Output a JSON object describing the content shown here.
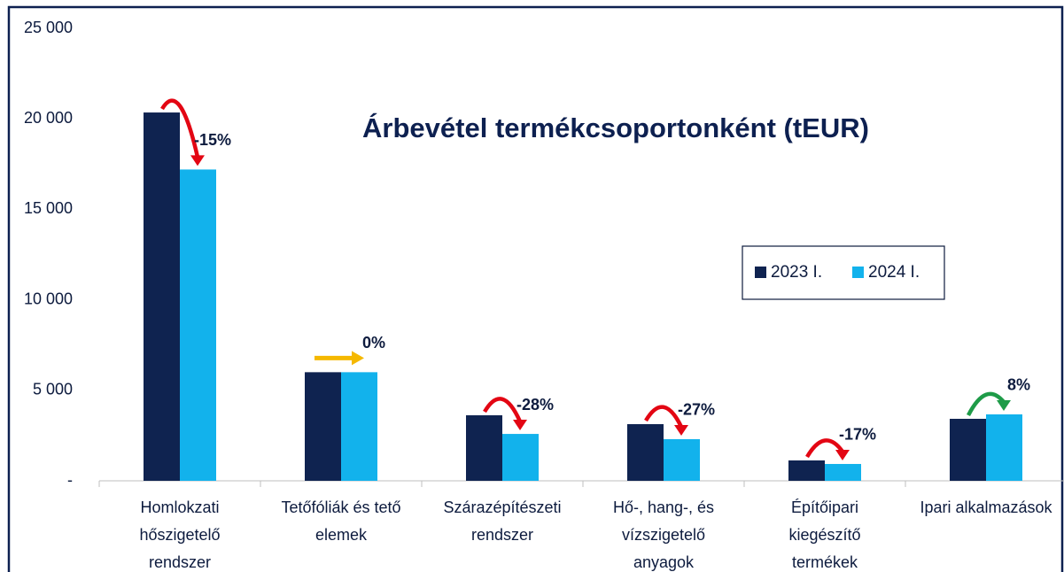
{
  "chart_data": {
    "type": "bar",
    "title": "Árbevétel termékcsoportonként (tEUR)",
    "categories": [
      [
        "Homlokzati",
        "hőszigetelő",
        "rendszer"
      ],
      [
        "Tetőfóliák és tető",
        "elemek"
      ],
      [
        "Szárazépítészeti",
        "rendszer"
      ],
      [
        "Hő-, hang-, és",
        "vízszigetelő",
        "anyagok"
      ],
      [
        "Építőipari",
        "kiegészítő",
        "termékek"
      ],
      [
        "Ipari alkalmazások"
      ]
    ],
    "series": [
      {
        "name": "2023 I.",
        "color": "#0f2350",
        "values": [
          20350,
          6000,
          3620,
          3130,
          1125,
          3425
        ]
      },
      {
        "name": "2024 I.",
        "color": "#12b2ec",
        "values": [
          17200,
          6000,
          2590,
          2300,
          930,
          3670
        ]
      }
    ],
    "changes": [
      "-15%",
      "0%",
      "-28%",
      "-27%",
      "-17%",
      "8%"
    ],
    "change_colors": [
      "#e30613",
      "#f5b800",
      "#e30613",
      "#e30613",
      "#e30613",
      "#1e9b48"
    ],
    "ylim": [
      0,
      25000
    ],
    "yticks": [
      {
        "value": 0,
        "label": "-"
      },
      {
        "value": 5000,
        "label": "5 000"
      },
      {
        "value": 10000,
        "label": "10 000"
      },
      {
        "value": 15000,
        "label": "15 000"
      },
      {
        "value": 20000,
        "label": "20 000"
      },
      {
        "value": 25000,
        "label": "25 000"
      }
    ]
  }
}
